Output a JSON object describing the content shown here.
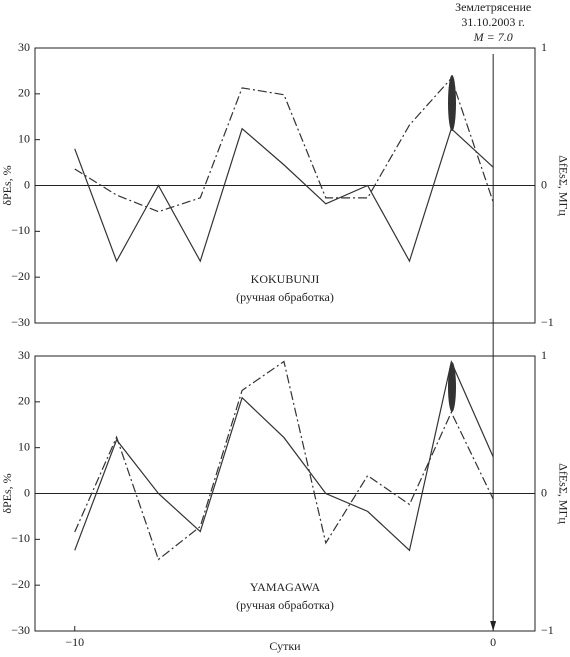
{
  "chart_data": [
    {
      "type": "line",
      "annotations": [
        "KOKUBUNJI",
        "(ручная обработка)"
      ],
      "event": {
        "x": 0,
        "lines": [
          "Землетрясение",
          "31.10.2003 г.",
          "M = 7.0"
        ]
      },
      "ylabel": "δPEs, %",
      "y2label": "ΔfEsΣ, МГц",
      "x": [
        -10,
        -9,
        -8,
        -7,
        -6,
        -5,
        -4,
        -3,
        -2,
        -1,
        0
      ],
      "xlim": [
        -10.95,
        1
      ],
      "ylim": [
        -30,
        30
      ],
      "yticks": [
        {
          "value": -30,
          "label": "−30"
        },
        {
          "value": -20,
          "label": "−20"
        },
        {
          "value": -10,
          "label": "−10"
        },
        0,
        10,
        20,
        30
      ],
      "y2lim": [
        -1,
        1
      ],
      "y2ticks": [
        {
          "value": -1,
          "label": "−1"
        },
        0,
        1
      ],
      "series": [
        {
          "color": "#333333",
          "style": "solid",
          "values": [
            8,
            -16.5,
            0,
            -16.5,
            12.4,
            4.5,
            -4,
            0,
            -16.5,
            12.4,
            4
          ]
        },
        {
          "color": "#333333",
          "style": "dashdot",
          "axis": "y2",
          "values": [
            0.12,
            -0.07,
            -0.19,
            -0.09,
            0.71,
            0.66,
            -0.09,
            -0.09,
            0.44,
            0.78,
            -0.12
          ]
        }
      ]
    },
    {
      "type": "line",
      "annotations": [
        "YAMAGAWA",
        "(ручная обработка)"
      ],
      "ylabel": "δPEs, %",
      "y2label": "ΔfEsΣ, МГц",
      "xlabel": "Сутки",
      "x": [
        -10,
        -9,
        -8,
        -7,
        -6,
        -5,
        -4,
        -3,
        -2,
        -1,
        0
      ],
      "xlim": [
        -10.95,
        1
      ],
      "xticks": [
        {
          "value": -10,
          "label": "−10"
        },
        0
      ],
      "ylim": [
        -30,
        30
      ],
      "yticks": [
        {
          "value": -30,
          "label": "−30"
        },
        {
          "value": -20,
          "label": "−20"
        },
        {
          "value": -10,
          "label": "−10"
        },
        0,
        10,
        20,
        30
      ],
      "y2lim": [
        -1,
        1
      ],
      "y2ticks": [
        {
          "value": -1,
          "label": "−1"
        },
        0,
        1
      ],
      "series": [
        {
          "color": "#333333",
          "style": "solid",
          "values": [
            -12.4,
            11.7,
            0,
            -8.3,
            20.9,
            12.2,
            0,
            -3.9,
            -12.4,
            28.7,
            8
          ]
        },
        {
          "color": "#333333",
          "style": "dashdot",
          "axis": "y2",
          "values": [
            -0.28,
            0.41,
            -0.48,
            -0.24,
            0.75,
            0.96,
            -0.36,
            0.13,
            -0.08,
            0.59,
            -0.04
          ]
        }
      ]
    }
  ]
}
